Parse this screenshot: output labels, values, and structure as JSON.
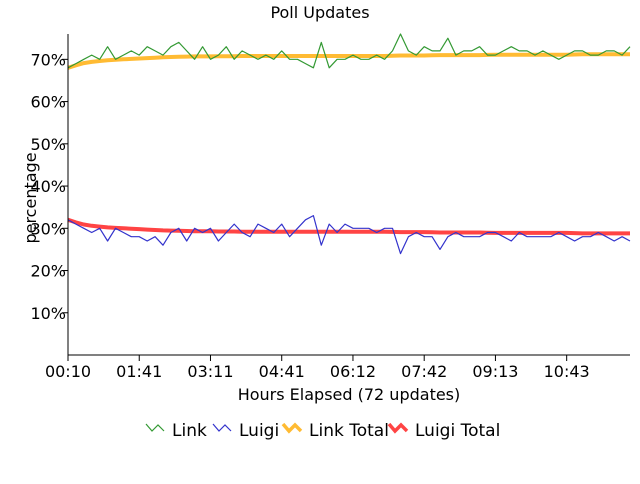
{
  "chart_data": {
    "type": "line",
    "title": "Poll Updates",
    "xlabel": "Hours Elapsed (72 updates)",
    "ylabel": "percentage",
    "y_tick_labels": [
      "10%",
      "20%",
      "30%",
      "40%",
      "50%",
      "60%",
      "70%"
    ],
    "y_tick_values": [
      10,
      20,
      30,
      40,
      50,
      60,
      70
    ],
    "ylim": [
      0,
      76
    ],
    "x_tick_labels": [
      "00:10",
      "01:41",
      "03:11",
      "04:41",
      "06:12",
      "07:42",
      "09:13",
      "10:43"
    ],
    "x_tick_indices": [
      0,
      9,
      18,
      27,
      36,
      45,
      54,
      63
    ],
    "n_updates": 72,
    "grid": false,
    "legend_position": "bottom",
    "series": [
      {
        "name": "Link",
        "color": "#339933",
        "values": [
          68,
          69,
          70,
          71,
          70,
          73,
          70,
          71,
          72,
          71,
          73,
          72,
          71,
          73,
          74,
          72,
          70,
          73,
          70,
          71,
          73,
          70,
          72,
          71,
          70,
          71,
          70,
          72,
          70,
          70,
          69,
          68,
          74,
          68,
          70,
          70,
          71,
          70,
          70,
          71,
          70,
          72,
          76,
          72,
          71,
          73,
          72,
          72,
          75,
          71,
          72,
          72,
          73,
          71,
          71,
          72,
          73,
          72,
          72,
          71,
          72,
          71,
          70,
          71,
          72,
          72,
          71,
          71,
          72,
          72,
          71,
          73
        ]
      },
      {
        "name": "Luigi",
        "color": "#3333cc",
        "values": [
          32,
          31,
          30,
          29,
          30,
          27,
          30,
          29,
          28,
          28,
          27,
          28,
          26,
          29,
          30,
          27,
          30,
          29,
          30,
          27,
          29,
          31,
          29,
          28,
          31,
          30,
          29,
          31,
          28,
          30,
          32,
          33,
          26,
          31,
          29,
          31,
          30,
          30,
          30,
          29,
          30,
          30,
          24,
          28,
          29,
          28,
          28,
          25,
          28,
          29,
          28,
          28,
          28,
          29,
          29,
          28,
          27,
          29,
          28,
          28,
          28,
          28,
          29,
          28,
          27,
          28,
          28,
          29,
          28,
          27,
          28,
          27
        ]
      },
      {
        "name": "Link Total",
        "color": "#ffbb33",
        "values": [
          68,
          68.6,
          69.1,
          69.4,
          69.6,
          69.8,
          69.9,
          70.0,
          70.1,
          70.2,
          70.3,
          70.4,
          70.5,
          70.55,
          70.6,
          70.65,
          70.7,
          70.7,
          70.7,
          70.75,
          70.75,
          70.75,
          70.8,
          70.8,
          70.8,
          70.8,
          70.8,
          70.8,
          70.8,
          70.8,
          70.8,
          70.8,
          70.8,
          70.8,
          70.8,
          70.8,
          70.8,
          70.8,
          70.8,
          70.8,
          70.8,
          70.85,
          70.9,
          70.9,
          70.9,
          70.9,
          70.95,
          71.0,
          71.0,
          71.0,
          71.0,
          71.0,
          71.0,
          71.05,
          71.1,
          71.1,
          71.1,
          71.1,
          71.1,
          71.1,
          71.1,
          71.1,
          71.1,
          71.1,
          71.15,
          71.2,
          71.2,
          71.2,
          71.2,
          71.2,
          71.2,
          71.2
        ]
      },
      {
        "name": "Luigi Total",
        "color": "#ff4444",
        "values": [
          32,
          31.4,
          30.9,
          30.6,
          30.4,
          30.2,
          30.1,
          30.0,
          29.9,
          29.8,
          29.7,
          29.6,
          29.5,
          29.45,
          29.4,
          29.35,
          29.3,
          29.3,
          29.3,
          29.25,
          29.25,
          29.25,
          29.2,
          29.2,
          29.2,
          29.2,
          29.2,
          29.2,
          29.2,
          29.2,
          29.2,
          29.2,
          29.2,
          29.2,
          29.2,
          29.2,
          29.2,
          29.2,
          29.2,
          29.2,
          29.2,
          29.15,
          29.1,
          29.1,
          29.1,
          29.1,
          29.05,
          29.0,
          29.0,
          29.0,
          29.0,
          29.0,
          29.0,
          28.95,
          28.9,
          28.9,
          28.9,
          28.9,
          28.9,
          28.9,
          28.9,
          28.9,
          28.9,
          28.9,
          28.85,
          28.8,
          28.8,
          28.8,
          28.8,
          28.8,
          28.8,
          28.8
        ]
      }
    ]
  }
}
